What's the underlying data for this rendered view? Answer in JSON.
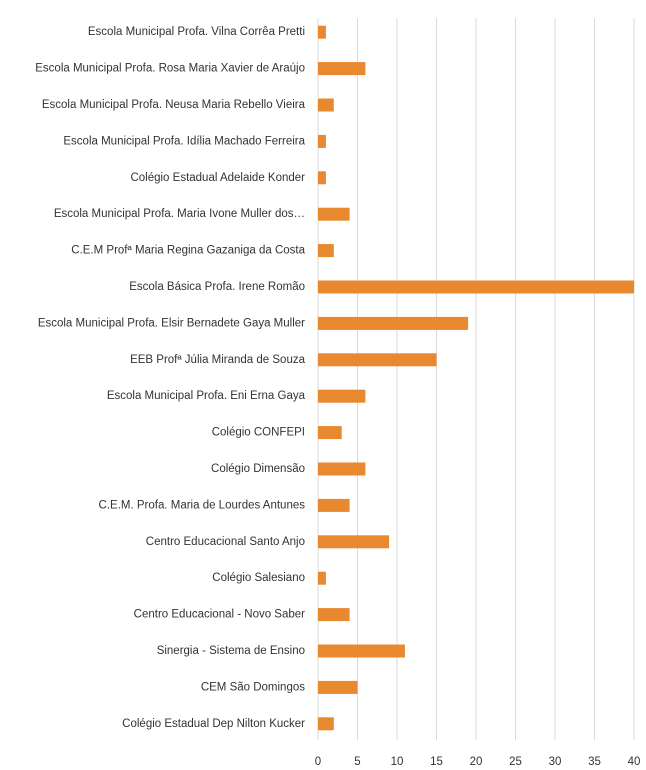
{
  "chart_data": {
    "type": "barh",
    "categories": [
      "Escola Municipal Profa. Vilna Corrêa Pretti",
      "Escola Municipal Profa. Rosa Maria Xavier de Araújo",
      "Escola Municipal Profa. Neusa Maria Rebello Vieira",
      "Escola Municipal Profa. Idília Machado Ferreira",
      "Colégio Estadual Adelaide Konder",
      "Escola Municipal Profa. Maria Ivone Muller dos…",
      "C.E.M Profª Maria Regina Gazaniga da Costa",
      "Escola Básica Profa. Irene Romão",
      "Escola Municipal Profa. Elsir Bernadete Gaya Muller",
      "EEB Profª Júlia Miranda de Souza",
      "Escola Municipal Profa. Eni Erna Gaya",
      "Colégio CONFEPI",
      "Colégio Dimensão",
      "C.E.M. Profa. Maria de Lourdes Antunes",
      "Centro Educacional Santo Anjo",
      "Colégio Salesiano",
      "Centro Educacional - Novo Saber",
      "Sinergia - Sistema de Ensino",
      "CEM São Domingos",
      "Colégio Estadual Dep Nilton Kucker"
    ],
    "values": [
      1,
      6,
      2,
      1,
      1,
      4,
      2,
      40,
      19,
      15,
      6,
      3,
      6,
      4,
      9,
      1,
      4,
      11,
      5,
      2
    ],
    "color": "#e8892f",
    "xlim": [
      0,
      40
    ],
    "xticks": [
      0,
      5,
      10,
      15,
      20,
      25,
      30,
      35,
      40
    ],
    "grid": true
  }
}
